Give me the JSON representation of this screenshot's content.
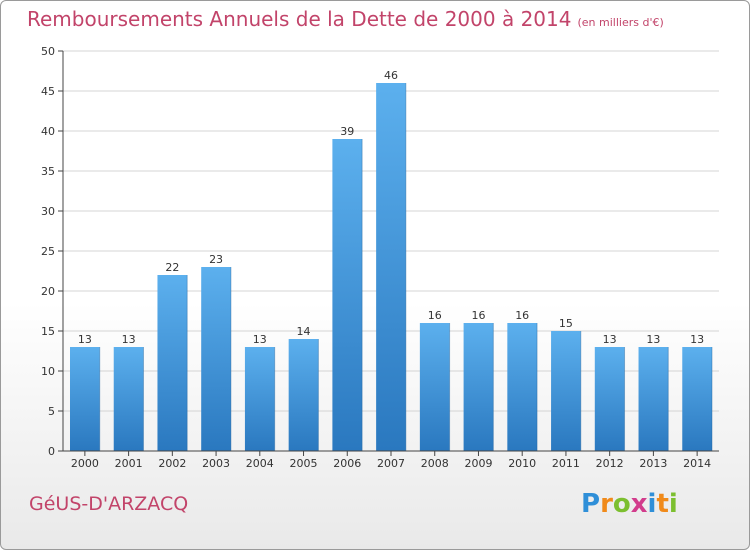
{
  "title": "Remboursements Annuels de la Dette de 2000 à 2014",
  "unit": "(en milliers d'€)",
  "commune": "GéUS-D'ARZACQ",
  "brand": {
    "letters": [
      "P",
      "r",
      "o",
      "x",
      "i",
      "t",
      "i"
    ],
    "colors": [
      "#2f8fd8",
      "#f08a1a",
      "#7cbf2f",
      "#d23c8c",
      "#2f8fd8",
      "#f08a1a",
      "#7cbf2f"
    ]
  },
  "colors": {
    "title": "#c2446a",
    "bar_light": "#5cb0ee",
    "bar_dark": "#2a78bf",
    "grid": "#d4d4d4",
    "axis": "#444444"
  },
  "chart_data": {
    "type": "bar",
    "title": "Remboursements Annuels de la Dette de 2000 à 2014",
    "categories": [
      "2000",
      "2001",
      "2002",
      "2003",
      "2004",
      "2005",
      "2006",
      "2007",
      "2008",
      "2009",
      "2010",
      "2011",
      "2012",
      "2013",
      "2014"
    ],
    "values": [
      13,
      13,
      22,
      23,
      13,
      14,
      39,
      46,
      16,
      16,
      16,
      15,
      13,
      13,
      13
    ],
    "ylim": [
      0,
      50
    ],
    "yticks": [
      0,
      5,
      10,
      15,
      20,
      25,
      30,
      35,
      40,
      45,
      50
    ],
    "grid": true,
    "data_labels": true
  }
}
